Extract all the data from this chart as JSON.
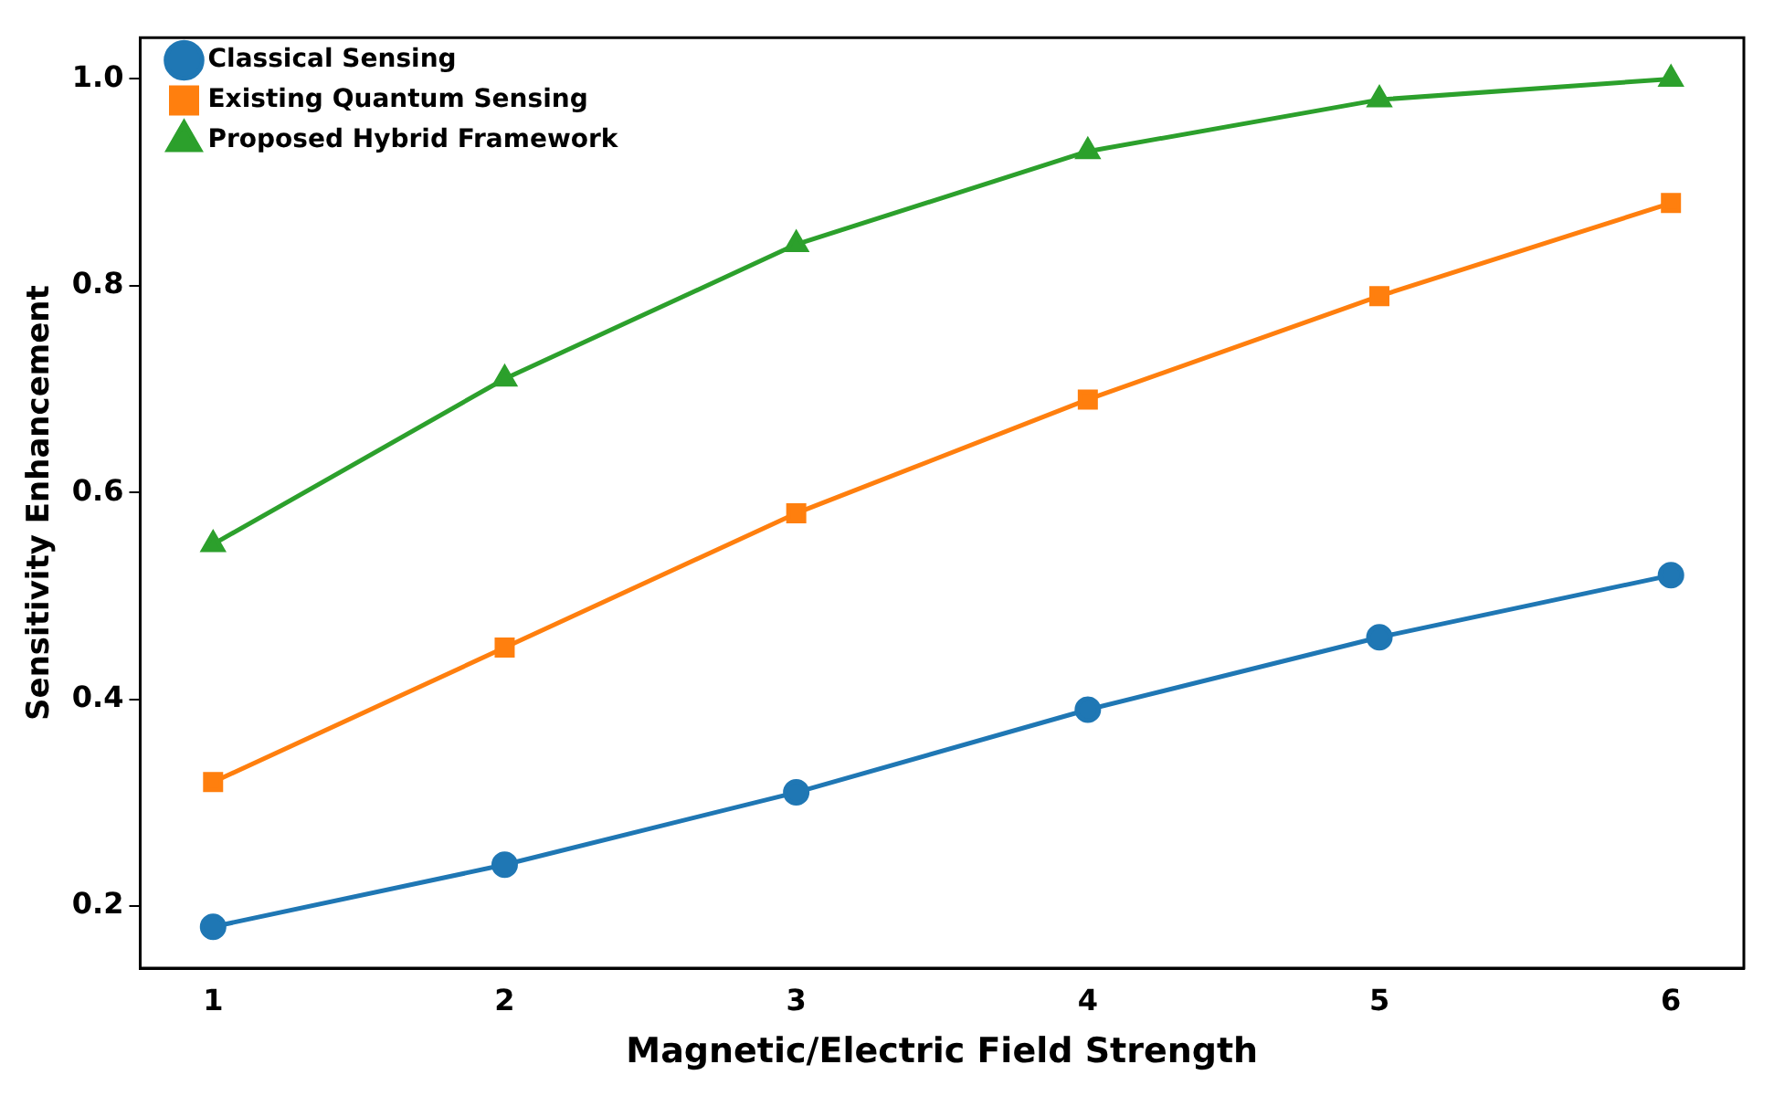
{
  "chart_data": {
    "type": "line",
    "xlabel": "Magnetic/Electric Field Strength",
    "ylabel": "Sensitivity Enhancement",
    "x": [
      1,
      2,
      3,
      4,
      5,
      6
    ],
    "series": [
      {
        "name": "Classical Sensing",
        "color": "#1f77b4",
        "marker": "circle",
        "values": [
          0.18,
          0.24,
          0.31,
          0.39,
          0.46,
          0.52
        ]
      },
      {
        "name": "Existing Quantum Sensing",
        "color": "#ff7f0e",
        "marker": "square",
        "values": [
          0.32,
          0.45,
          0.58,
          0.69,
          0.79,
          0.88
        ]
      },
      {
        "name": "Proposed Hybrid Framework",
        "color": "#2ca02c",
        "marker": "triangle",
        "values": [
          0.55,
          0.71,
          0.84,
          0.93,
          0.98,
          1.0
        ]
      }
    ],
    "xlim": [
      0.75,
      6.25
    ],
    "xticks": [
      1,
      2,
      3,
      4,
      5,
      6
    ],
    "ylim": [
      0.14,
      1.04
    ],
    "yticks": [
      {
        "value": 0.2,
        "label": "0.2"
      },
      {
        "value": 0.4,
        "label": "0.4"
      },
      {
        "value": 0.6,
        "label": "0.6"
      },
      {
        "value": 0.8,
        "label": "0.8"
      },
      {
        "value": 1,
        "label": "1.0"
      }
    ],
    "grid": false,
    "legend": "top left",
    "line_style": "solid"
  }
}
